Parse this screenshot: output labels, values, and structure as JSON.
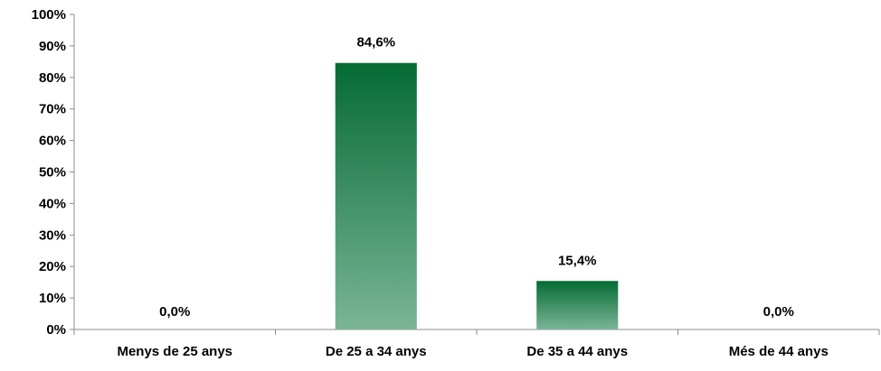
{
  "chart_data": {
    "type": "bar",
    "title": "",
    "xlabel": "",
    "ylabel": "",
    "categories": [
      "Menys de 25 anys",
      "De 25 a 34 anys",
      "De 35 a 44 anys",
      "Més de 44 anys"
    ],
    "values": [
      0.0,
      84.6,
      15.4,
      0.0
    ],
    "data_labels": [
      "0,0%",
      "84,6%",
      "15,4%",
      "0,0%"
    ],
    "ylim": [
      0,
      100
    ],
    "yticks": [
      0,
      10,
      20,
      30,
      40,
      50,
      60,
      70,
      80,
      90,
      100
    ],
    "ytick_labels": [
      "0%",
      "10%",
      "20%",
      "30%",
      "40%",
      "50%",
      "60%",
      "70%",
      "80%",
      "90%",
      "100%"
    ],
    "grid": false,
    "legend": "none",
    "colors": {
      "bar_top": "#056b33",
      "bar_bottom": "#7ab597",
      "axis": "#8c8c8c",
      "text": "#000000"
    }
  }
}
